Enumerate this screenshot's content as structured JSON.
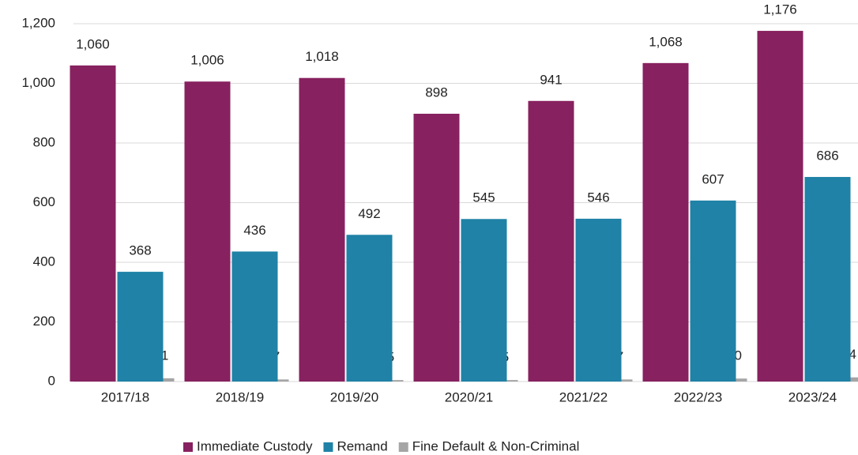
{
  "chart_data": {
    "type": "bar",
    "categories": [
      "2017/18",
      "2018/19",
      "2019/20",
      "2020/21",
      "2021/22",
      "2022/23",
      "2023/24"
    ],
    "series": [
      {
        "name": "Immediate Custody",
        "color": "#87215f",
        "values": [
          1060,
          1006,
          1018,
          898,
          941,
          1068,
          1176
        ],
        "value_labels": [
          "1,060",
          "1,006",
          "1,018",
          "898",
          "941",
          "1,068",
          "1,176"
        ]
      },
      {
        "name": "Remand",
        "color": "#1f82a6",
        "values": [
          368,
          436,
          492,
          545,
          546,
          607,
          686
        ]
      },
      {
        "name": "Fine Default & Non-Criminal",
        "color": "#a5a5a5",
        "values": [
          11,
          7,
          5,
          5,
          7,
          10,
          14
        ]
      }
    ],
    "ylim": [
      0,
      1200
    ],
    "yticks": [
      0,
      200,
      400,
      600,
      800,
      {
        "value": 1000,
        "label": "1,000"
      },
      {
        "value": 1200,
        "label": "1,200"
      }
    ],
    "grid": true,
    "legend": "bottom"
  }
}
